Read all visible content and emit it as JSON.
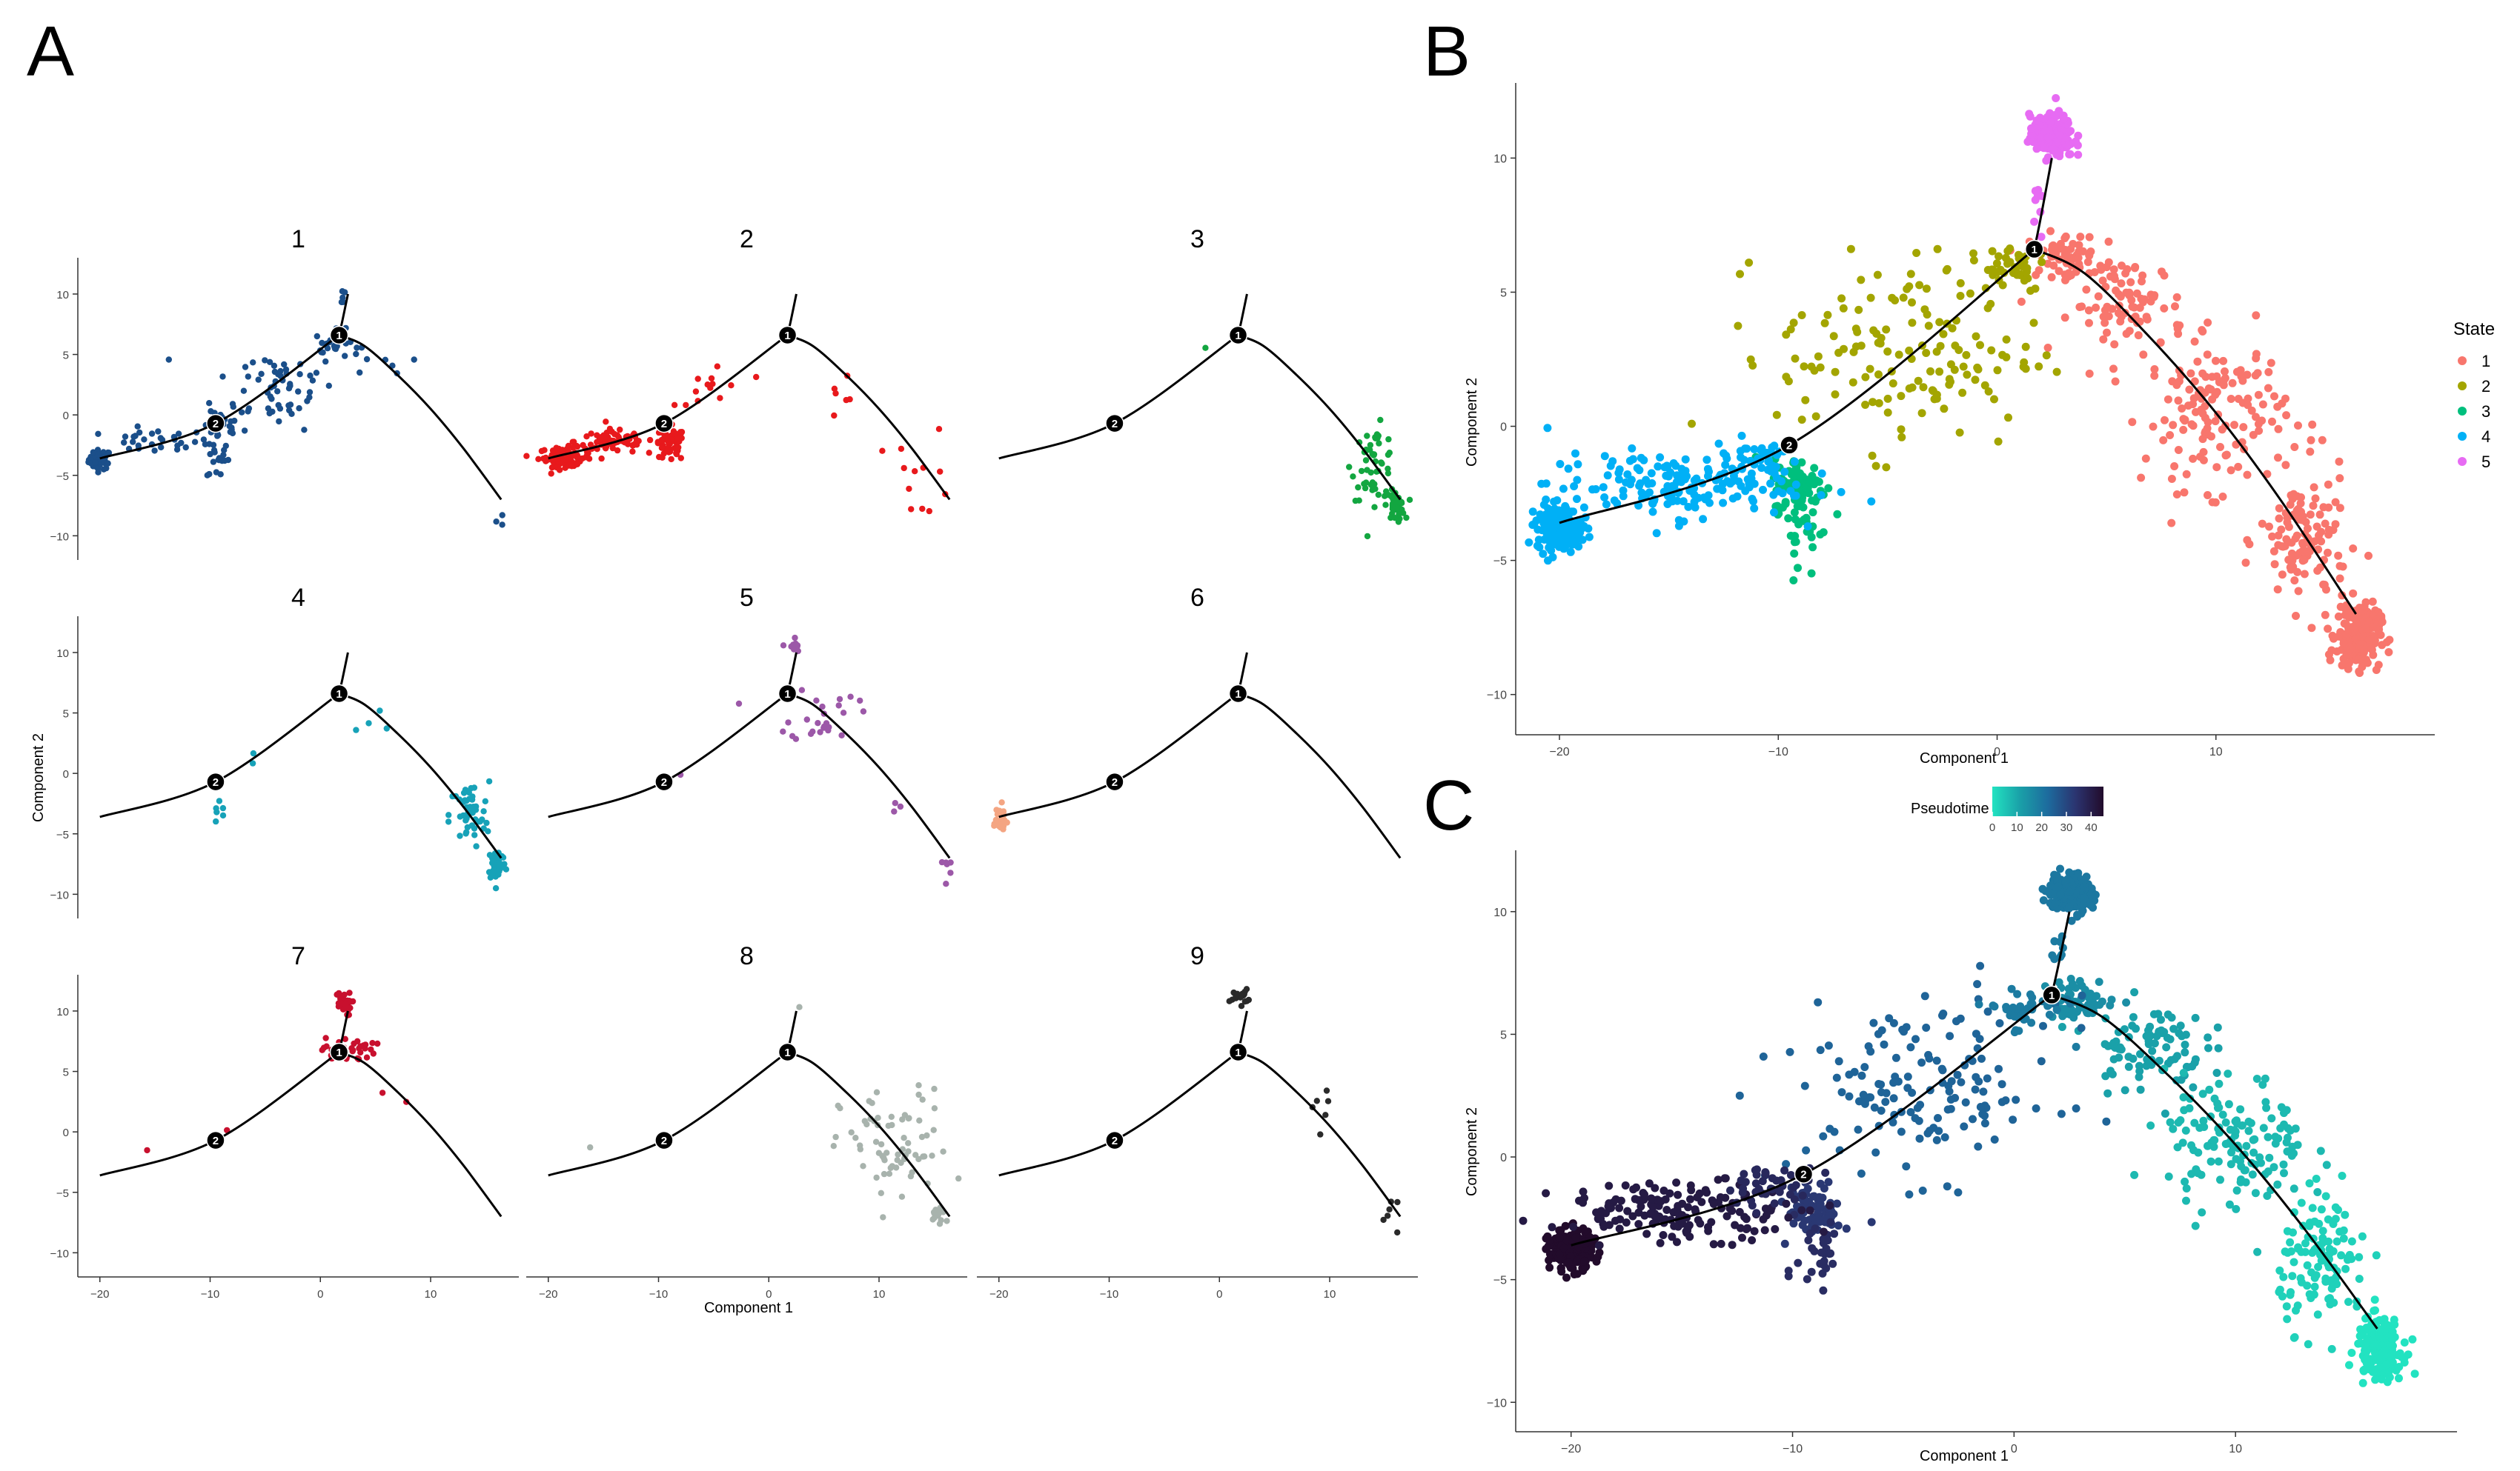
{
  "panel_letters": {
    "a": "A",
    "b": "B",
    "c": "C"
  },
  "colors": {
    "axis": "#333333",
    "trajectory": "#000000",
    "node_fill": "#000000",
    "node_text": "#ffffff",
    "grid_panels": [
      "#1b4f8a",
      "#e8191c",
      "#13a640",
      "#17a2b8",
      "#9c58a8",
      "#f4a582",
      "#c8102e",
      "#a8b3ad",
      "#2a2a2a"
    ],
    "states": [
      "#f8766d",
      "#a3a500",
      "#00bf7d",
      "#00b0f6",
      "#e76bf3"
    ],
    "pseudotime_stops": [
      "#22e3c1",
      "#1aa0a8",
      "#1d6b9e",
      "#2b3470",
      "#220b2b"
    ]
  },
  "chart_data": [
    {
      "id": "A",
      "type": "scatter",
      "layout": "facet-grid-3x3",
      "facets": [
        "1",
        "2",
        "3",
        "4",
        "5",
        "6",
        "7",
        "8",
        "9"
      ],
      "xlabel": "Component 1",
      "ylabel": "Component 2",
      "xlim": [
        -22,
        18
      ],
      "ylim": [
        -12,
        13
      ],
      "xticks": [
        -20,
        -10,
        0,
        10
      ],
      "xtick_labels": [
        "−20",
        "−10",
        "0",
        "10"
      ],
      "yticks": [
        -10,
        -5,
        0,
        5,
        10
      ],
      "ytick_labels": [
        "−10",
        "−5",
        "0",
        "5",
        "10"
      ],
      "trajectory": {
        "nodes": [
          {
            "label": "1",
            "x": 1.7,
            "y": 6.6
          },
          {
            "label": "2",
            "x": -9.5,
            "y": -0.7
          }
        ],
        "edges": [
          [
            [
              -20,
              -3.6
            ],
            [
              -9.5,
              -0.7
            ],
            [
              1.7,
              6.6
            ]
          ],
          [
            [
              1.7,
              6.6
            ],
            [
              2.0,
              7.8
            ],
            [
              2.5,
              10.0
            ]
          ],
          [
            [
              1.7,
              6.6
            ],
            [
              4,
              5.7
            ],
            [
              7,
              3.3
            ],
            [
              10,
              0.5
            ],
            [
              13,
              -2.8
            ],
            [
              16.4,
              -7.0
            ]
          ]
        ]
      },
      "clusters": [
        {
          "facet": "1",
          "points": [
            {
              "cx": -20,
              "cy": -3.7,
              "sx": 0.5,
              "sy": 0.4,
              "n": 50
            },
            {
              "cx": -15,
              "cy": -2.2,
              "sx": 2.5,
              "sy": 0.5,
              "n": 30
            },
            {
              "cx": -9.0,
              "cy": -1.0,
              "sx": 0.8,
              "sy": 0.6,
              "n": 25
            },
            {
              "cx": -9.3,
              "cy": -3.5,
              "sx": 0.5,
              "sy": 1.0,
              "n": 20
            },
            {
              "cx": -4,
              "cy": 2.5,
              "sx": 2.8,
              "sy": 1.8,
              "n": 60
            },
            {
              "cx": 1.5,
              "cy": 5.8,
              "sx": 1.0,
              "sy": 0.6,
              "n": 25
            },
            {
              "cx": 2.0,
              "cy": 9.8,
              "sx": 0.2,
              "sy": 0.5,
              "n": 5
            },
            {
              "cx": 6,
              "cy": 4.0,
              "sx": 1.2,
              "sy": 0.7,
              "n": 5
            },
            {
              "cx": 16,
              "cy": -8.6,
              "sx": 0.3,
              "sy": 0.3,
              "n": 3
            }
          ]
        },
        {
          "facet": "2",
          "points": [
            {
              "cx": -18.5,
              "cy": -3.5,
              "sx": 1.2,
              "sy": 0.4,
              "n": 90
            },
            {
              "cx": -14,
              "cy": -2.2,
              "sx": 1.8,
              "sy": 0.5,
              "n": 70
            },
            {
              "cx": -9.0,
              "cy": -2.5,
              "sx": 0.7,
              "sy": 0.7,
              "n": 60
            },
            {
              "cx": -5,
              "cy": 2.2,
              "sx": 1.6,
              "sy": 1.4,
              "n": 14
            },
            {
              "cx": 7,
              "cy": 2.0,
              "sx": 1.0,
              "sy": 1.2,
              "n": 6
            },
            {
              "cx": 14,
              "cy": -5.0,
              "sx": 1.3,
              "sy": 2.0,
              "n": 12
            }
          ]
        },
        {
          "facet": "3",
          "points": [
            {
              "cx": 14.0,
              "cy": -4.0,
              "sx": 1.0,
              "sy": 1.5,
              "n": 50
            },
            {
              "cx": 16.0,
              "cy": -7.5,
              "sx": 0.4,
              "sy": 0.6,
              "n": 40
            },
            {
              "cx": -1.5,
              "cy": 5.5,
              "sx": 0.1,
              "sy": 0.1,
              "n": 1
            }
          ]
        },
        {
          "facet": "4",
          "points": [
            {
              "cx": 13.5,
              "cy": -3.5,
              "sx": 0.9,
              "sy": 1.4,
              "n": 50
            },
            {
              "cx": 16.0,
              "cy": -7.5,
              "sx": 0.4,
              "sy": 0.7,
              "n": 50
            },
            {
              "cx": -9.0,
              "cy": -3.0,
              "sx": 0.4,
              "sy": 0.6,
              "n": 6
            },
            {
              "cx": -6.0,
              "cy": 0.8,
              "sx": 0.5,
              "sy": 0.5,
              "n": 2
            },
            {
              "cx": 5.5,
              "cy": 3.5,
              "sx": 1.2,
              "sy": 0.9,
              "n": 4
            }
          ]
        },
        {
          "facet": "5",
          "points": [
            {
              "cx": 2.2,
              "cy": 10.5,
              "sx": 0.3,
              "sy": 0.4,
              "n": 12
            },
            {
              "cx": 5.0,
              "cy": 5.0,
              "sx": 1.5,
              "sy": 1.3,
              "n": 25
            },
            {
              "cx": 16.5,
              "cy": -8.0,
              "sx": 0.3,
              "sy": 0.6,
              "n": 6
            },
            {
              "cx": 11,
              "cy": -1.8,
              "sx": 1.0,
              "sy": 0.7,
              "n": 3
            },
            {
              "cx": -8,
              "cy": -0.2,
              "sx": 0.2,
              "sy": 0.2,
              "n": 1
            },
            {
              "cx": -2.5,
              "cy": 6.0,
              "sx": 0.2,
              "sy": 0.2,
              "n": 1
            }
          ]
        },
        {
          "facet": "6",
          "points": [
            {
              "cx": -20.0,
              "cy": -3.8,
              "sx": 0.4,
              "sy": 0.6,
              "n": 30
            }
          ]
        },
        {
          "facet": "7",
          "points": [
            {
              "cx": 2.0,
              "cy": 10.6,
              "sx": 0.4,
              "sy": 0.5,
              "n": 30
            },
            {
              "cx": 2.5,
              "cy": 6.8,
              "sx": 1.2,
              "sy": 0.5,
              "n": 35
            },
            {
              "cx": -16.0,
              "cy": -1.3,
              "sx": 0.2,
              "sy": 0.2,
              "n": 1
            },
            {
              "cx": 7.0,
              "cy": 3.0,
              "sx": 0.7,
              "sy": 0.6,
              "n": 2
            },
            {
              "cx": -8.5,
              "cy": 0.2,
              "sx": 0.2,
              "sy": 0.2,
              "n": 1
            }
          ]
        },
        {
          "facet": "8",
          "points": [
            {
              "cx": 11.5,
              "cy": -1.5,
              "sx": 2.5,
              "sy": 2.5,
              "n": 70
            },
            {
              "cx": 15.5,
              "cy": -6.8,
              "sx": 0.6,
              "sy": 0.5,
              "n": 15
            },
            {
              "cx": -16.0,
              "cy": -1.5,
              "sx": 0.2,
              "sy": 0.2,
              "n": 1
            },
            {
              "cx": 2.5,
              "cy": 10.5,
              "sx": 0.2,
              "sy": 0.2,
              "n": 1
            }
          ]
        },
        {
          "facet": "9",
          "points": [
            {
              "cx": 1.8,
              "cy": 11.2,
              "sx": 0.4,
              "sy": 0.3,
              "n": 18
            },
            {
              "cx": 9.5,
              "cy": 2.0,
              "sx": 0.6,
              "sy": 1.0,
              "n": 6
            },
            {
              "cx": 15.5,
              "cy": -7.0,
              "sx": 0.6,
              "sy": 1.2,
              "n": 6
            }
          ]
        }
      ]
    },
    {
      "id": "B",
      "type": "scatter",
      "xlabel": "Component 1",
      "ylabel": "Component 2",
      "xlim": [
        -22,
        20
      ],
      "ylim": [
        -11.5,
        12.8
      ],
      "xticks": [
        -20,
        -10,
        0,
        10
      ],
      "xtick_labels": [
        "−20",
        "−10",
        "0",
        "10"
      ],
      "yticks": [
        -10,
        -5,
        0,
        5,
        10
      ],
      "ytick_labels": [
        "−10",
        "−5",
        "0",
        "5",
        "10"
      ],
      "legend": {
        "title": "State",
        "position": "right",
        "entries": [
          "1",
          "2",
          "3",
          "4",
          "5"
        ]
      },
      "trajectory": {
        "nodes": [
          {
            "label": "1",
            "x": 1.7,
            "y": 6.6
          },
          {
            "label": "2",
            "x": -9.5,
            "y": -0.7
          }
        ],
        "edges": [
          [
            [
              -20,
              -3.6
            ],
            [
              -9.5,
              -0.7
            ],
            [
              1.7,
              6.6
            ]
          ],
          [
            [
              1.7,
              6.6
            ],
            [
              2.0,
              7.8
            ],
            [
              2.5,
              10.0
            ]
          ],
          [
            [
              1.7,
              6.6
            ],
            [
              4,
              5.7
            ],
            [
              7,
              3.3
            ],
            [
              10,
              0.5
            ],
            [
              13,
              -2.8
            ],
            [
              16.4,
              -7.0
            ]
          ]
        ]
      },
      "clusters": [
        {
          "state": "1",
          "cx": 3.0,
          "cy": 6.4,
          "sx": 0.8,
          "sy": 0.4,
          "n": 60
        },
        {
          "state": "1",
          "cx": 6.0,
          "cy": 4.5,
          "sx": 1.3,
          "sy": 0.9,
          "n": 90
        },
        {
          "state": "1",
          "cx": 10.0,
          "cy": 0.5,
          "sx": 1.6,
          "sy": 1.4,
          "n": 140
        },
        {
          "state": "1",
          "cx": 14.0,
          "cy": -4.3,
          "sx": 1.0,
          "sy": 1.3,
          "n": 120
        },
        {
          "state": "1",
          "cx": 16.5,
          "cy": -7.8,
          "sx": 0.5,
          "sy": 0.6,
          "n": 200
        },
        {
          "state": "2",
          "cx": -4.0,
          "cy": 2.8,
          "sx": 3.0,
          "sy": 1.8,
          "n": 150
        },
        {
          "state": "2",
          "cx": 0.5,
          "cy": 6.0,
          "sx": 0.9,
          "sy": 0.5,
          "n": 40
        },
        {
          "state": "3",
          "cx": -9.0,
          "cy": -2.2,
          "sx": 0.6,
          "sy": 0.5,
          "n": 80
        },
        {
          "state": "3",
          "cx": -8.8,
          "cy": -3.8,
          "sx": 0.5,
          "sy": 0.9,
          "n": 30
        },
        {
          "state": "4",
          "cx": -20.0,
          "cy": -3.8,
          "sx": 0.5,
          "sy": 0.4,
          "n": 220
        },
        {
          "state": "4",
          "cx": -15.0,
          "cy": -2.2,
          "sx": 2.8,
          "sy": 0.6,
          "n": 160
        },
        {
          "state": "4",
          "cx": -11.0,
          "cy": -1.2,
          "sx": 1.0,
          "sy": 0.4,
          "n": 40
        },
        {
          "state": "5",
          "cx": 2.5,
          "cy": 10.8,
          "sx": 0.5,
          "sy": 0.4,
          "n": 170
        },
        {
          "state": "5",
          "cx": 2.0,
          "cy": 8.6,
          "sx": 0.2,
          "sy": 0.5,
          "n": 8
        }
      ]
    },
    {
      "id": "C",
      "type": "scatter",
      "xlabel": "Component 1",
      "ylabel": "Component 2",
      "xlim": [
        -22.5,
        20
      ],
      "ylim": [
        -11.2,
        12.5
      ],
      "xticks": [
        -20,
        -10,
        0,
        10
      ],
      "xtick_labels": [
        "−20",
        "−10",
        "0",
        "10"
      ],
      "yticks": [
        -10,
        -5,
        0,
        5,
        10
      ],
      "ytick_labels": [
        "−10",
        "−5",
        "0",
        "5",
        "10"
      ],
      "colorbar": {
        "title": "Pseudotime",
        "position": "top",
        "range": [
          0,
          45
        ],
        "ticks": [
          0,
          10,
          20,
          30,
          40
        ],
        "tick_labels": [
          "0",
          "10",
          "20",
          "30",
          "40"
        ]
      },
      "trajectory": {
        "nodes": [
          {
            "label": "1",
            "x": 1.7,
            "y": 6.6
          },
          {
            "label": "2",
            "x": -9.5,
            "y": -0.7
          }
        ],
        "edges": [
          [
            [
              -20,
              -3.6
            ],
            [
              -9.5,
              -0.7
            ],
            [
              1.7,
              6.6
            ]
          ],
          [
            [
              1.7,
              6.6
            ],
            [
              2.0,
              7.8
            ],
            [
              2.5,
              10.0
            ]
          ],
          [
            [
              1.7,
              6.6
            ],
            [
              4,
              5.7
            ],
            [
              7,
              3.3
            ],
            [
              10,
              0.5
            ],
            [
              13,
              -2.8
            ],
            [
              16.4,
              -7.0
            ]
          ]
        ]
      },
      "clusters": [
        {
          "pseudotime": 15,
          "cx": 3.0,
          "cy": 6.4,
          "sx": 0.8,
          "sy": 0.4,
          "n": 60
        },
        {
          "pseudotime": 11,
          "cx": 6.0,
          "cy": 4.5,
          "sx": 1.3,
          "sy": 0.9,
          "n": 90
        },
        {
          "pseudotime": 7,
          "cx": 10.0,
          "cy": 0.5,
          "sx": 1.6,
          "sy": 1.4,
          "n": 140
        },
        {
          "pseudotime": 3,
          "cx": 14.0,
          "cy": -4.3,
          "sx": 1.0,
          "sy": 1.3,
          "n": 120
        },
        {
          "pseudotime": 0,
          "cx": 16.5,
          "cy": -7.8,
          "sx": 0.5,
          "sy": 0.6,
          "n": 200
        },
        {
          "pseudotime": 24,
          "cx": -4.0,
          "cy": 2.8,
          "sx": 3.0,
          "sy": 1.8,
          "n": 150
        },
        {
          "pseudotime": 19,
          "cx": 0.5,
          "cy": 6.0,
          "sx": 0.9,
          "sy": 0.5,
          "n": 40
        },
        {
          "pseudotime": 33,
          "cx": -9.0,
          "cy": -2.2,
          "sx": 0.6,
          "sy": 0.5,
          "n": 80
        },
        {
          "pseudotime": 36,
          "cx": -8.8,
          "cy": -3.8,
          "sx": 0.5,
          "sy": 0.9,
          "n": 30
        },
        {
          "pseudotime": 45,
          "cx": -20.0,
          "cy": -3.8,
          "sx": 0.5,
          "sy": 0.4,
          "n": 220
        },
        {
          "pseudotime": 41,
          "cx": -15.0,
          "cy": -2.2,
          "sx": 2.8,
          "sy": 0.6,
          "n": 160
        },
        {
          "pseudotime": 37,
          "cx": -11.0,
          "cy": -1.2,
          "sx": 1.0,
          "sy": 0.4,
          "n": 40
        },
        {
          "pseudotime": 20,
          "cx": 2.5,
          "cy": 10.8,
          "sx": 0.5,
          "sy": 0.4,
          "n": 170
        },
        {
          "pseudotime": 19,
          "cx": 2.0,
          "cy": 8.6,
          "sx": 0.2,
          "sy": 0.5,
          "n": 8
        }
      ]
    }
  ]
}
